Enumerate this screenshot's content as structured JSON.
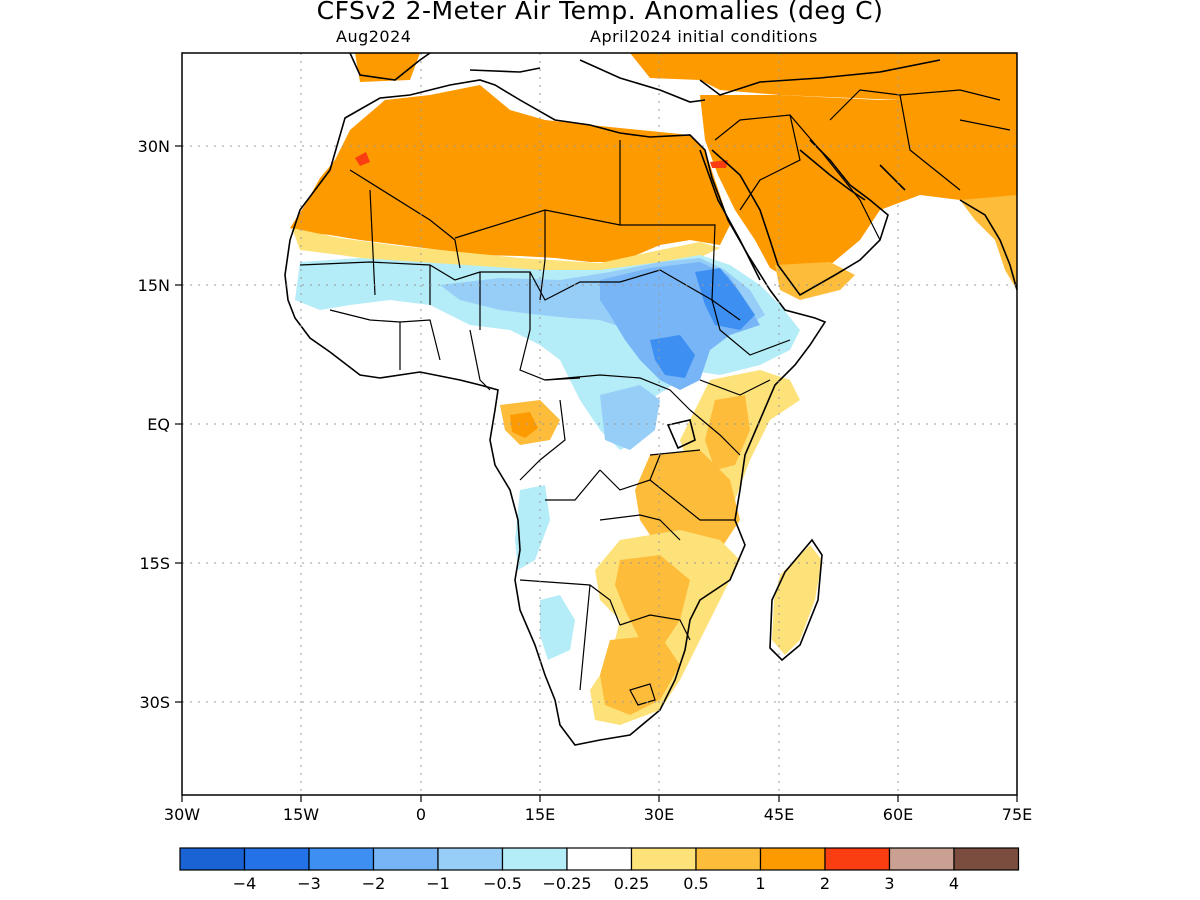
{
  "map": {
    "title": "CFSv2 2-Meter Air Temp. Anomalies (deg C)",
    "subtitle_left": "Aug2024",
    "subtitle_right": "April2024 initial conditions",
    "lat_labels": [
      "30N",
      "15N",
      "EQ",
      "15S",
      "30S"
    ],
    "lon_labels": [
      "30W",
      "15W",
      "0",
      "15E",
      "30E",
      "45E",
      "60E",
      "75E"
    ],
    "extent": {
      "lon": [
        -30,
        75
      ],
      "lat": [
        -40,
        42
      ]
    },
    "gridlines": "dotted"
  },
  "legend": {
    "colors": [
      "#1a63d5",
      "#2472e8",
      "#3d8ff2",
      "#78b5f7",
      "#96cef8",
      "#b4ecf7",
      "#ffffff",
      "#fde27a",
      "#fdbc3a",
      "#fd9a00",
      "#fb3d12",
      "#c9a091",
      "#7b4d3f"
    ],
    "labels": [
      "-4",
      "-3",
      "-2",
      "-1",
      "-0.5",
      "-0.25",
      "0.25",
      "0.5",
      "1",
      "2",
      "3",
      "4"
    ]
  }
}
